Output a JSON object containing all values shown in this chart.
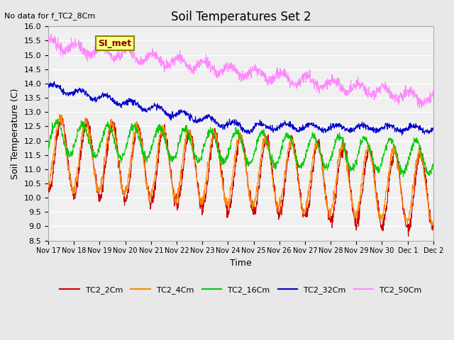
{
  "title": "Soil Temperatures Set 2",
  "note": "No data for f_TC2_8Cm",
  "xlabel": "Time",
  "ylabel": "Soil Temperature (C)",
  "ylim": [
    8.5,
    16.0
  ],
  "yticks": [
    8.5,
    9.0,
    9.5,
    10.0,
    10.5,
    11.0,
    11.5,
    12.0,
    12.5,
    13.0,
    13.5,
    14.0,
    14.5,
    15.0,
    15.5,
    16.0
  ],
  "xtick_labels": [
    "Nov 17",
    "Nov 18",
    "Nov 19",
    "Nov 20",
    "Nov 21",
    "Nov 22",
    "Nov 23",
    "Nov 24",
    "Nov 25",
    "Nov 26",
    "Nov 27",
    "Nov 28",
    "Nov 29",
    "Nov 30",
    "Dec 1",
    "Dec 2"
  ],
  "series_colors": {
    "TC2_2Cm": "#cc0000",
    "TC2_4Cm": "#ff8800",
    "TC2_16Cm": "#00cc00",
    "TC2_32Cm": "#0000cc",
    "TC2_50Cm": "#ff88ff"
  },
  "legend_label": "SI_met",
  "background_color": "#e8e8e8",
  "plot_bg_color": "#f0f0f0",
  "grid_color": "#ffffff"
}
